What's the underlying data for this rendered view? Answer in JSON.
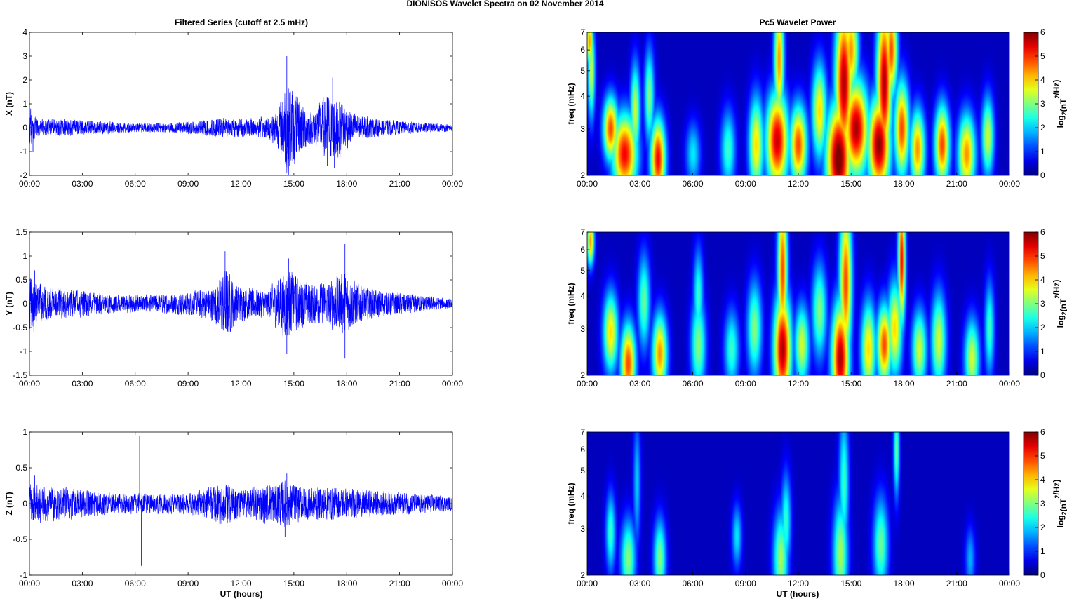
{
  "figure_title": "DIONISOS Wavelet Spectra on 02 November  2014",
  "left_title": "Filtered Series (cutoff at 2.5 mHz)",
  "right_title": "Pc5 Wavelet Power",
  "xlabel": "UT (hours)",
  "time_ticks": [
    "00:00",
    "03:00",
    "06:00",
    "09:00",
    "12:00",
    "15:00",
    "18:00",
    "21:00",
    "00:00"
  ],
  "spec_ylabel": "freq (mHz)",
  "spec_yticks": [
    "2",
    "3",
    "4",
    "5",
    "6",
    "7"
  ],
  "colorbar_ticks": [
    "0",
    "1",
    "2",
    "3",
    "4",
    "5",
    "6"
  ],
  "colorbar_label": "log2(nT2/Hz)",
  "colors": {
    "trace": "#0000ff",
    "colormap": "jet",
    "spectrum_background": "#00008f"
  },
  "chart_data": [
    {
      "type": "line",
      "name": "X",
      "ylabel": "X (nT)",
      "xlim": [
        "00:00",
        "24:00"
      ],
      "ylim": [
        -2,
        4
      ],
      "yticks": [
        "-2",
        "-1",
        "0",
        "1",
        "2",
        "3",
        "4"
      ],
      "grid": false,
      "envelope": [
        {
          "t": 0.0,
          "amp": 0.9
        },
        {
          "t": 0.5,
          "amp": 0.35
        },
        {
          "t": 1.5,
          "amp": 0.4
        },
        {
          "t": 3.0,
          "amp": 0.35
        },
        {
          "t": 4.0,
          "amp": 0.3
        },
        {
          "t": 6.0,
          "amp": 0.2
        },
        {
          "t": 8.0,
          "amp": 0.22
        },
        {
          "t": 9.5,
          "amp": 0.3
        },
        {
          "t": 11.0,
          "amp": 0.45
        },
        {
          "t": 12.5,
          "amp": 0.4
        },
        {
          "t": 13.5,
          "amp": 0.5
        },
        {
          "t": 14.2,
          "amp": 1.0
        },
        {
          "t": 14.6,
          "amp": 2.2
        },
        {
          "t": 15.2,
          "amp": 1.4
        },
        {
          "t": 16.0,
          "amp": 0.7
        },
        {
          "t": 16.9,
          "amp": 1.5
        },
        {
          "t": 17.6,
          "amp": 1.3
        },
        {
          "t": 18.5,
          "amp": 0.6
        },
        {
          "t": 20.0,
          "amp": 0.35
        },
        {
          "t": 22.0,
          "amp": 0.25
        },
        {
          "t": 24.0,
          "amp": 0.15
        }
      ],
      "spikes": [
        {
          "t": 14.6,
          "y": 3.0
        },
        {
          "t": 14.6,
          "y": -1.3
        },
        {
          "t": 17.2,
          "y": 2.1
        },
        {
          "t": 17.3,
          "y": -1.7
        },
        {
          "t": 16.9,
          "y": -1.6
        },
        {
          "t": 0.2,
          "y": -1.0
        }
      ]
    },
    {
      "type": "line",
      "name": "Y",
      "ylabel": "Y (nT)",
      "xlim": [
        "00:00",
        "24:00"
      ],
      "ylim": [
        -1.5,
        1.5
      ],
      "yticks": [
        "-1.5",
        "-1",
        "-0.5",
        "0",
        "0.5",
        "1",
        "1.5"
      ],
      "grid": false,
      "envelope": [
        {
          "t": 0.0,
          "amp": 0.6
        },
        {
          "t": 1.0,
          "amp": 0.35
        },
        {
          "t": 3.0,
          "amp": 0.3
        },
        {
          "t": 5.0,
          "amp": 0.2
        },
        {
          "t": 7.0,
          "amp": 0.2
        },
        {
          "t": 9.0,
          "amp": 0.25
        },
        {
          "t": 10.5,
          "amp": 0.4
        },
        {
          "t": 11.1,
          "amp": 0.85
        },
        {
          "t": 11.8,
          "amp": 0.4
        },
        {
          "t": 13.5,
          "amp": 0.3
        },
        {
          "t": 14.6,
          "amp": 0.8
        },
        {
          "t": 15.5,
          "amp": 0.5
        },
        {
          "t": 16.5,
          "amp": 0.45
        },
        {
          "t": 17.9,
          "amp": 0.7
        },
        {
          "t": 19.0,
          "amp": 0.35
        },
        {
          "t": 22.0,
          "amp": 0.2
        },
        {
          "t": 24.0,
          "amp": 0.1
        }
      ],
      "spikes": [
        {
          "t": 11.1,
          "y": 1.1
        },
        {
          "t": 11.2,
          "y": -0.85
        },
        {
          "t": 14.7,
          "y": 0.95
        },
        {
          "t": 14.6,
          "y": -1.05
        },
        {
          "t": 17.9,
          "y": 1.25
        },
        {
          "t": 17.9,
          "y": -1.15
        },
        {
          "t": 0.3,
          "y": 0.7
        },
        {
          "t": 0.25,
          "y": -0.6
        }
      ]
    },
    {
      "type": "line",
      "name": "Z",
      "ylabel": "Z (nT)",
      "xlim": [
        "00:00",
        "24:00"
      ],
      "ylim": [
        -1,
        1
      ],
      "yticks": [
        "-1",
        "-0.5",
        "0",
        "0.5",
        "1"
      ],
      "grid": false,
      "envelope": [
        {
          "t": 0.0,
          "amp": 0.3
        },
        {
          "t": 1.5,
          "amp": 0.25
        },
        {
          "t": 3.0,
          "amp": 0.2
        },
        {
          "t": 5.0,
          "amp": 0.15
        },
        {
          "t": 7.0,
          "amp": 0.15
        },
        {
          "t": 9.0,
          "amp": 0.15
        },
        {
          "t": 11.0,
          "amp": 0.3
        },
        {
          "t": 12.0,
          "amp": 0.2
        },
        {
          "t": 14.5,
          "amp": 0.35
        },
        {
          "t": 15.5,
          "amp": 0.25
        },
        {
          "t": 17.0,
          "amp": 0.25
        },
        {
          "t": 19.0,
          "amp": 0.2
        },
        {
          "t": 22.0,
          "amp": 0.15
        },
        {
          "t": 24.0,
          "amp": 0.1
        }
      ],
      "spikes": [
        {
          "t": 6.25,
          "y": 0.95
        },
        {
          "t": 6.35,
          "y": -0.87
        },
        {
          "t": 14.6,
          "y": 0.42
        },
        {
          "t": 14.5,
          "y": -0.47
        },
        {
          "t": 0.3,
          "y": 0.4
        }
      ]
    },
    {
      "type": "heatmap",
      "name": "X power",
      "xlim": [
        "00:00",
        "24:00"
      ],
      "ylim_mHz": [
        2,
        7
      ],
      "yscale": "log",
      "clim": [
        0,
        6
      ],
      "blobs": [
        {
          "t": 0.1,
          "f": 6.5,
          "v": 4.5,
          "wt": 0.15,
          "wf": 0.15
        },
        {
          "t": 0.2,
          "f": 5.0,
          "v": 3.5,
          "wt": 0.15,
          "wf": 0.3
        },
        {
          "t": 1.3,
          "f": 3.0,
          "v": 5.0,
          "wt": 0.3,
          "wf": 0.2
        },
        {
          "t": 2.1,
          "f": 2.4,
          "v": 5.5,
          "wt": 0.5,
          "wf": 0.25
        },
        {
          "t": 2.7,
          "f": 3.5,
          "v": 3.5,
          "wt": 0.2,
          "wf": 0.3
        },
        {
          "t": 4.0,
          "f": 2.3,
          "v": 5.5,
          "wt": 0.3,
          "wf": 0.25
        },
        {
          "t": 3.5,
          "f": 4.0,
          "v": 3.0,
          "wt": 0.2,
          "wf": 0.3
        },
        {
          "t": 8.0,
          "f": 2.5,
          "v": 2.5,
          "wt": 0.3,
          "wf": 0.25
        },
        {
          "t": 9.6,
          "f": 2.6,
          "v": 4.0,
          "wt": 0.3,
          "wf": 0.3
        },
        {
          "t": 10.8,
          "f": 2.7,
          "v": 5.8,
          "wt": 0.45,
          "wf": 0.3
        },
        {
          "t": 10.9,
          "f": 5.5,
          "v": 4.5,
          "wt": 0.2,
          "wf": 0.4
        },
        {
          "t": 12.0,
          "f": 2.6,
          "v": 5.0,
          "wt": 0.35,
          "wf": 0.25
        },
        {
          "t": 13.2,
          "f": 3.5,
          "v": 4.0,
          "wt": 0.3,
          "wf": 0.3
        },
        {
          "t": 14.3,
          "f": 2.3,
          "v": 6.5,
          "wt": 0.5,
          "wf": 0.35
        },
        {
          "t": 14.6,
          "f": 4.5,
          "v": 6.0,
          "wt": 0.35,
          "wf": 0.5
        },
        {
          "t": 15.3,
          "f": 3.0,
          "v": 6.0,
          "wt": 0.5,
          "wf": 0.3
        },
        {
          "t": 15.0,
          "f": 6.0,
          "v": 4.5,
          "wt": 0.3,
          "wf": 0.3
        },
        {
          "t": 16.6,
          "f": 2.6,
          "v": 6.2,
          "wt": 0.45,
          "wf": 0.3
        },
        {
          "t": 16.9,
          "f": 4.5,
          "v": 6.0,
          "wt": 0.3,
          "wf": 0.5
        },
        {
          "t": 17.3,
          "f": 6.0,
          "v": 5.0,
          "wt": 0.25,
          "wf": 0.3
        },
        {
          "t": 17.9,
          "f": 3.0,
          "v": 5.0,
          "wt": 0.3,
          "wf": 0.3
        },
        {
          "t": 18.8,
          "f": 2.5,
          "v": 4.5,
          "wt": 0.3,
          "wf": 0.25
        },
        {
          "t": 20.2,
          "f": 2.6,
          "v": 5.0,
          "wt": 0.3,
          "wf": 0.25
        },
        {
          "t": 21.6,
          "f": 2.4,
          "v": 4.5,
          "wt": 0.35,
          "wf": 0.25
        },
        {
          "t": 22.8,
          "f": 2.8,
          "v": 3.5,
          "wt": 0.25,
          "wf": 0.25
        },
        {
          "t": 6.0,
          "f": 2.4,
          "v": 2.0,
          "wt": 0.3,
          "wf": 0.2
        }
      ]
    },
    {
      "type": "heatmap",
      "name": "Y power",
      "xlim": [
        "00:00",
        "24:00"
      ],
      "ylim_mHz": [
        2,
        7
      ],
      "yscale": "log",
      "clim": [
        0,
        6
      ],
      "blobs": [
        {
          "t": 0.15,
          "f": 6.5,
          "v": 4.5,
          "wt": 0.15,
          "wf": 0.15
        },
        {
          "t": 1.3,
          "f": 2.9,
          "v": 4.0,
          "wt": 0.3,
          "wf": 0.25
        },
        {
          "t": 2.3,
          "f": 2.2,
          "v": 5.0,
          "wt": 0.3,
          "wf": 0.25
        },
        {
          "t": 4.1,
          "f": 2.4,
          "v": 4.5,
          "wt": 0.3,
          "wf": 0.25
        },
        {
          "t": 3.2,
          "f": 3.8,
          "v": 2.8,
          "wt": 0.25,
          "wf": 0.3
        },
        {
          "t": 6.3,
          "f": 2.6,
          "v": 3.0,
          "wt": 0.3,
          "wf": 0.3
        },
        {
          "t": 6.3,
          "f": 4.0,
          "v": 2.5,
          "wt": 0.2,
          "wf": 0.3
        },
        {
          "t": 8.2,
          "f": 2.5,
          "v": 2.5,
          "wt": 0.3,
          "wf": 0.25
        },
        {
          "t": 9.5,
          "f": 3.0,
          "v": 3.0,
          "wt": 0.3,
          "wf": 0.3
        },
        {
          "t": 11.1,
          "f": 2.5,
          "v": 6.0,
          "wt": 0.35,
          "wf": 0.35
        },
        {
          "t": 11.1,
          "f": 5.0,
          "v": 5.0,
          "wt": 0.2,
          "wf": 0.5
        },
        {
          "t": 12.2,
          "f": 2.6,
          "v": 3.5,
          "wt": 0.3,
          "wf": 0.25
        },
        {
          "t": 13.2,
          "f": 3.5,
          "v": 3.0,
          "wt": 0.3,
          "wf": 0.3
        },
        {
          "t": 14.4,
          "f": 2.3,
          "v": 6.0,
          "wt": 0.35,
          "wf": 0.35
        },
        {
          "t": 14.7,
          "f": 4.5,
          "v": 5.0,
          "wt": 0.25,
          "wf": 0.5
        },
        {
          "t": 16.0,
          "f": 2.5,
          "v": 4.0,
          "wt": 0.3,
          "wf": 0.3
        },
        {
          "t": 16.9,
          "f": 2.6,
          "v": 5.0,
          "wt": 0.3,
          "wf": 0.25
        },
        {
          "t": 17.9,
          "f": 5.5,
          "v": 5.5,
          "wt": 0.15,
          "wf": 0.4
        },
        {
          "t": 17.5,
          "f": 3.0,
          "v": 4.0,
          "wt": 0.3,
          "wf": 0.3
        },
        {
          "t": 18.9,
          "f": 2.5,
          "v": 3.5,
          "wt": 0.3,
          "wf": 0.25
        },
        {
          "t": 20.0,
          "f": 2.7,
          "v": 3.5,
          "wt": 0.3,
          "wf": 0.3
        },
        {
          "t": 21.9,
          "f": 2.3,
          "v": 3.5,
          "wt": 0.3,
          "wf": 0.25
        },
        {
          "t": 22.9,
          "f": 3.0,
          "v": 2.5,
          "wt": 0.2,
          "wf": 0.3
        }
      ]
    },
    {
      "type": "heatmap",
      "name": "Z power",
      "xlim": [
        "00:00",
        "24:00"
      ],
      "ylim_mHz": [
        2,
        7
      ],
      "yscale": "log",
      "clim": [
        0,
        6
      ],
      "blobs": [
        {
          "t": 1.3,
          "f": 2.9,
          "v": 2.5,
          "wt": 0.2,
          "wf": 0.25
        },
        {
          "t": 2.3,
          "f": 2.3,
          "v": 3.0,
          "wt": 0.3,
          "wf": 0.25
        },
        {
          "t": 2.8,
          "f": 4.5,
          "v": 1.8,
          "wt": 0.15,
          "wf": 0.4
        },
        {
          "t": 4.1,
          "f": 2.3,
          "v": 3.0,
          "wt": 0.25,
          "wf": 0.25
        },
        {
          "t": 8.5,
          "f": 2.8,
          "v": 2.0,
          "wt": 0.2,
          "wf": 0.2
        },
        {
          "t": 11.0,
          "f": 2.3,
          "v": 3.2,
          "wt": 0.3,
          "wf": 0.3
        },
        {
          "t": 11.3,
          "f": 3.2,
          "v": 2.5,
          "wt": 0.2,
          "wf": 0.3
        },
        {
          "t": 14.4,
          "f": 2.4,
          "v": 3.2,
          "wt": 0.3,
          "wf": 0.35
        },
        {
          "t": 14.6,
          "f": 4.5,
          "v": 2.5,
          "wt": 0.2,
          "wf": 0.45
        },
        {
          "t": 16.7,
          "f": 2.6,
          "v": 2.8,
          "wt": 0.3,
          "wf": 0.3
        },
        {
          "t": 17.6,
          "f": 6.0,
          "v": 2.8,
          "wt": 0.12,
          "wf": 0.3
        },
        {
          "t": 21.8,
          "f": 2.3,
          "v": 1.6,
          "wt": 0.2,
          "wf": 0.2
        }
      ]
    }
  ]
}
